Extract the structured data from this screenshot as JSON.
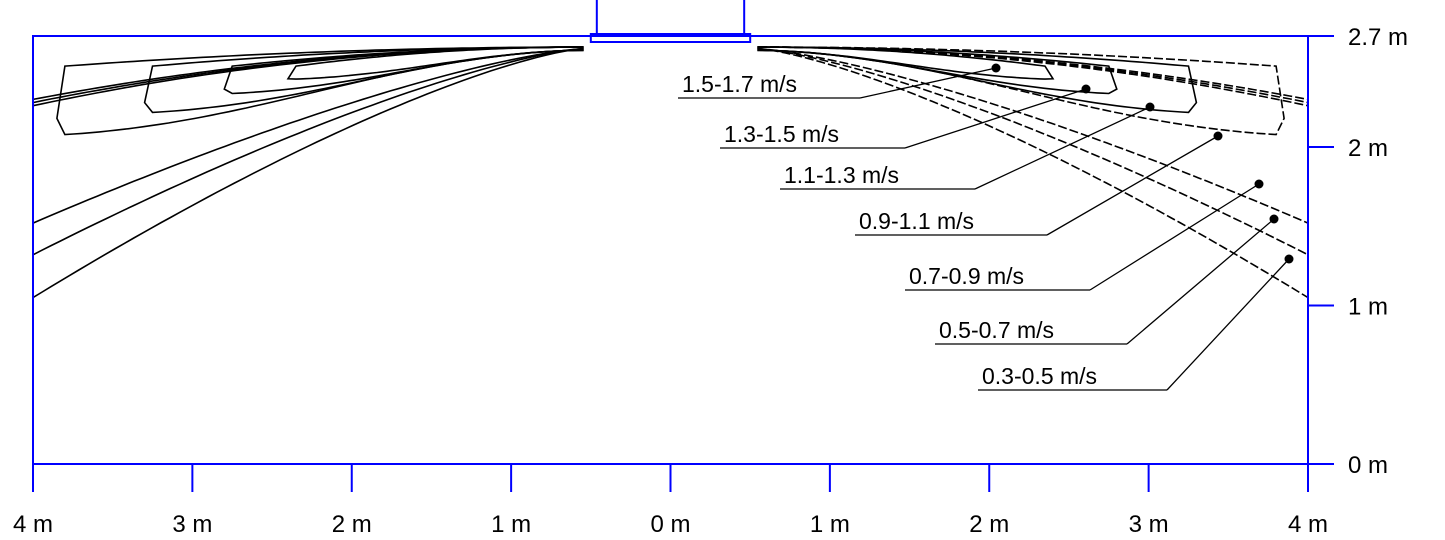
{
  "chart_data": {
    "type": "contour",
    "title": "",
    "x_ticks": [
      "4 m",
      "3 m",
      "2 m",
      "1 m",
      "0 m",
      "1 m",
      "2 m",
      "3 m",
      "4 m"
    ],
    "x_tick_values": [
      -4,
      -3,
      -2,
      -1,
      0,
      1,
      2,
      3,
      4
    ],
    "y_ticks": [
      "0 m",
      "1 m",
      "2 m",
      "2.7 m"
    ],
    "y_tick_values": [
      0,
      1,
      2,
      2.7
    ],
    "xlim": [
      -4,
      4
    ],
    "ylim": [
      0,
      2.7
    ],
    "outlet_width_m": 1.0,
    "contours": [
      {
        "label": "1.5-1.7 m/s",
        "lo": 1.5,
        "hi": 1.7,
        "reach_x_m": 2.35,
        "lowest_y_m": 2.35
      },
      {
        "label": "1.3-1.5 m/s",
        "lo": 1.3,
        "hi": 1.5,
        "reach_x_m": 2.75,
        "lowest_y_m": 2.22
      },
      {
        "label": "1.1-1.3 m/s",
        "lo": 1.1,
        "hi": 1.3,
        "reach_x_m": 3.25,
        "lowest_y_m": 2.05
      },
      {
        "label": "0.9-1.1 m/s",
        "lo": 0.9,
        "hi": 1.1,
        "reach_x_m": 3.8,
        "lowest_y_m": 1.85
      },
      {
        "label": "0.7-0.9 m/s",
        "lo": 0.7,
        "hi": 0.9,
        "reach_x_m": 4.0,
        "lowest_y_m": 1.52
      },
      {
        "label": "0.5-0.7 m/s",
        "lo": 0.5,
        "hi": 0.7,
        "reach_x_m": 4.0,
        "lowest_y_m": 1.32
      },
      {
        "label": "0.3-0.5 m/s",
        "lo": 0.3,
        "hi": 0.5,
        "reach_x_m": 4.0,
        "lowest_y_m": 1.05
      }
    ],
    "grid": false,
    "legend": "callout labels, right side"
  },
  "colors": {
    "axis": "#0000ff",
    "contour": "#000000",
    "background": "#ffffff"
  }
}
